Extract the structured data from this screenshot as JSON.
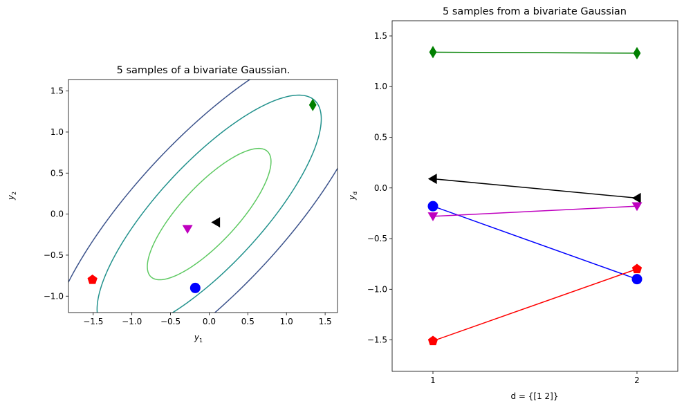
{
  "chart_data": [
    {
      "type": "scatter",
      "title": "5 samples of a bivariate Gaussian.",
      "xlabel": "y",
      "xlabel_sub": "1",
      "ylabel": "y",
      "ylabel_sub": "2",
      "xlim": [
        -1.82,
        1.66
      ],
      "ylim": [
        -1.2,
        1.64
      ],
      "xticks": [
        -1.5,
        -1.0,
        -0.5,
        0.0,
        0.5,
        1.0,
        1.5
      ],
      "xtick_labels": [
        "−1.5",
        "−1.0",
        "−0.5",
        "0.0",
        "0.5",
        "1.0",
        "1.5"
      ],
      "yticks": [
        -1.0,
        -0.5,
        0.0,
        0.5,
        1.0,
        1.5
      ],
      "ytick_labels": [
        "−1.0",
        "−0.5",
        "0.0",
        "0.5",
        "1.0",
        "1.5"
      ],
      "contours": {
        "mean": [
          0.0,
          0.0
        ],
        "covariance": [
          [
            1.0,
            0.8
          ],
          [
            0.8,
            1.0
          ]
        ],
        "levels": [
          {
            "k": 0.8,
            "color": "#5ec962"
          },
          {
            "k": 1.45,
            "color": "#21918c"
          },
          {
            "k": 2.1,
            "color": "#3b528b"
          }
        ]
      },
      "points": [
        {
          "name": "blue",
          "x": -0.18,
          "y": -0.9,
          "marker": "circle",
          "color": "#0000ff"
        },
        {
          "name": "green",
          "x": 1.34,
          "y": 1.33,
          "marker": "diamond",
          "color": "#008000"
        },
        {
          "name": "red",
          "x": -1.51,
          "y": -0.8,
          "marker": "pentagon",
          "color": "#ff0000"
        },
        {
          "name": "magenta",
          "x": -0.28,
          "y": -0.18,
          "marker": "triangle-down",
          "color": "#bf00bf"
        },
        {
          "name": "black",
          "x": 0.09,
          "y": -0.1,
          "marker": "triangle-left",
          "color": "#000000"
        }
      ]
    },
    {
      "type": "line",
      "title": "5 samples from a bivariate Gaussian",
      "xlabel": "d = {[1 2]}",
      "ylabel": "y",
      "ylabel_sub": "d",
      "xlim": [
        0.8,
        2.2
      ],
      "ylim": [
        -1.81,
        1.65
      ],
      "xticks": [
        1,
        2
      ],
      "xtick_labels": [
        "1",
        "2"
      ],
      "yticks": [
        -1.5,
        -1.0,
        -0.5,
        0.0,
        0.5,
        1.0,
        1.5
      ],
      "ytick_labels": [
        "−1.5",
        "−1.0",
        "−0.5",
        "0.0",
        "0.5",
        "1.0",
        "1.5"
      ],
      "series": [
        {
          "name": "green",
          "x": [
            1,
            2
          ],
          "y": [
            1.34,
            1.33
          ],
          "marker": "diamond",
          "color": "#008000"
        },
        {
          "name": "black",
          "x": [
            1,
            2
          ],
          "y": [
            0.09,
            -0.1
          ],
          "marker": "triangle-left",
          "color": "#000000"
        },
        {
          "name": "blue",
          "x": [
            1,
            2
          ],
          "y": [
            -0.18,
            -0.9
          ],
          "marker": "circle",
          "color": "#0000ff"
        },
        {
          "name": "magenta",
          "x": [
            1,
            2
          ],
          "y": [
            -0.28,
            -0.18
          ],
          "marker": "triangle-down",
          "color": "#bf00bf"
        },
        {
          "name": "red",
          "x": [
            1,
            2
          ],
          "y": [
            -1.51,
            -0.8
          ],
          "marker": "pentagon",
          "color": "#ff0000"
        }
      ]
    }
  ]
}
